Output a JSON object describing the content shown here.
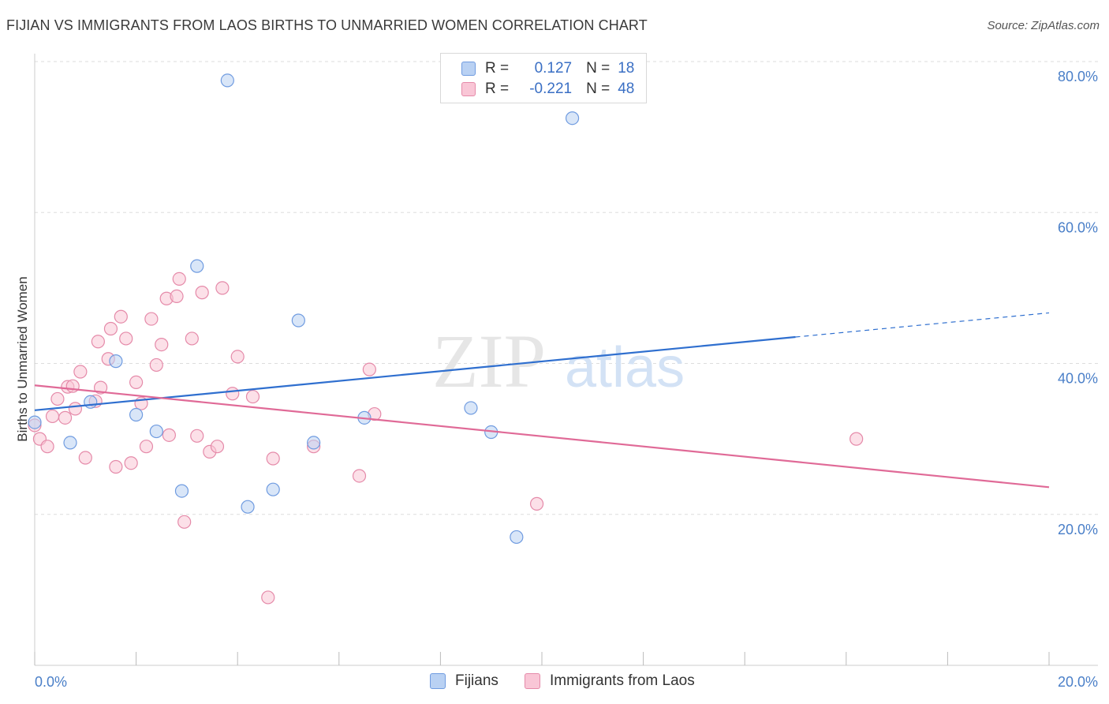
{
  "header": {
    "title": "FIJIAN VS IMMIGRANTS FROM LAOS BIRTHS TO UNMARRIED WOMEN CORRELATION CHART",
    "source": "Source: ZipAtlas.com"
  },
  "watermark": {
    "zip": "ZIP",
    "atlas": "atlas"
  },
  "legend": {
    "rows": [
      {
        "r_label": "R =",
        "r_value": "0.127",
        "n_label": "N =",
        "n_value": "18"
      },
      {
        "r_label": "R =",
        "r_value": "-0.221",
        "n_label": "N =",
        "n_value": "48"
      }
    ]
  },
  "colors": {
    "fijians_fill": "#b9d1f3",
    "fijians_stroke": "#6f9be0",
    "fijians_line": "#2f6fcf",
    "laos_fill": "#f9c6d6",
    "laos_stroke": "#e58aa9",
    "laos_line": "#e06a97",
    "axis_label": "#4a7fc8",
    "grid": "#dddddd"
  },
  "chart_data": {
    "type": "scatter",
    "title": "FIJIAN VS IMMIGRANTS FROM LAOS BIRTHS TO UNMARRIED WOMEN CORRELATION CHART",
    "xlabel": "",
    "ylabel": "Births to Unmarried Women",
    "xlim": [
      0,
      20
    ],
    "ylim": [
      0,
      80
    ],
    "x_tick_labels": [
      "0.0%",
      "20.0%"
    ],
    "y_tick_values": [
      20,
      40,
      60,
      80
    ],
    "y_tick_labels": [
      "20.0%",
      "40.0%",
      "60.0%",
      "80.0%"
    ],
    "grid": true,
    "legend_position": "top-center",
    "series": [
      {
        "name": "Fijians",
        "r": 0.127,
        "n": 18,
        "points": [
          [
            0.0,
            32.2
          ],
          [
            0.7,
            29.5
          ],
          [
            1.1,
            34.9
          ],
          [
            1.6,
            40.3
          ],
          [
            2.0,
            33.2
          ],
          [
            2.4,
            31.0
          ],
          [
            2.9,
            23.1
          ],
          [
            3.2,
            52.9
          ],
          [
            3.8,
            77.5
          ],
          [
            4.2,
            21.0
          ],
          [
            4.7,
            23.3
          ],
          [
            5.2,
            45.7
          ],
          [
            5.5,
            29.5
          ],
          [
            6.5,
            32.8
          ],
          [
            8.6,
            34.1
          ],
          [
            9.0,
            30.9
          ],
          [
            9.5,
            17.0
          ],
          [
            10.6,
            72.5
          ]
        ],
        "trend": {
          "x_start": 0.0,
          "y_start": 33.8,
          "x_end": 15.0,
          "y_end": 43.5,
          "x_dashed_end": 20.0,
          "y_dashed_end": 46.7
        }
      },
      {
        "name": "Immigrants from Laos",
        "r": -0.221,
        "n": 48,
        "points": [
          [
            0.0,
            31.8
          ],
          [
            0.1,
            30.0
          ],
          [
            0.25,
            29.0
          ],
          [
            0.35,
            33.0
          ],
          [
            0.45,
            35.3
          ],
          [
            0.6,
            32.8
          ],
          [
            0.65,
            36.9
          ],
          [
            0.75,
            37.0
          ],
          [
            0.8,
            34.0
          ],
          [
            0.9,
            38.9
          ],
          [
            1.0,
            27.5
          ],
          [
            1.2,
            35.0
          ],
          [
            1.25,
            42.9
          ],
          [
            1.3,
            36.8
          ],
          [
            1.45,
            40.6
          ],
          [
            1.5,
            44.6
          ],
          [
            1.6,
            26.3
          ],
          [
            1.7,
            46.2
          ],
          [
            1.8,
            43.3
          ],
          [
            1.9,
            26.8
          ],
          [
            2.0,
            37.5
          ],
          [
            2.1,
            34.7
          ],
          [
            2.2,
            29.0
          ],
          [
            2.3,
            45.9
          ],
          [
            2.4,
            39.8
          ],
          [
            2.5,
            42.5
          ],
          [
            2.6,
            48.6
          ],
          [
            2.65,
            30.5
          ],
          [
            2.8,
            48.9
          ],
          [
            2.85,
            51.2
          ],
          [
            2.95,
            19.0
          ],
          [
            3.1,
            43.3
          ],
          [
            3.2,
            30.4
          ],
          [
            3.3,
            49.4
          ],
          [
            3.45,
            28.3
          ],
          [
            3.6,
            29.0
          ],
          [
            3.7,
            50.0
          ],
          [
            3.9,
            36.0
          ],
          [
            4.0,
            40.9
          ],
          [
            4.3,
            35.6
          ],
          [
            4.6,
            9.0
          ],
          [
            4.7,
            27.4
          ],
          [
            5.5,
            29.0
          ],
          [
            6.4,
            25.1
          ],
          [
            6.6,
            39.2
          ],
          [
            6.7,
            33.3
          ],
          [
            9.9,
            21.4
          ],
          [
            16.2,
            30.0
          ]
        ],
        "trend": {
          "x_start": 0.0,
          "y_start": 37.1,
          "x_end": 20.0,
          "y_end": 23.6
        }
      }
    ]
  }
}
